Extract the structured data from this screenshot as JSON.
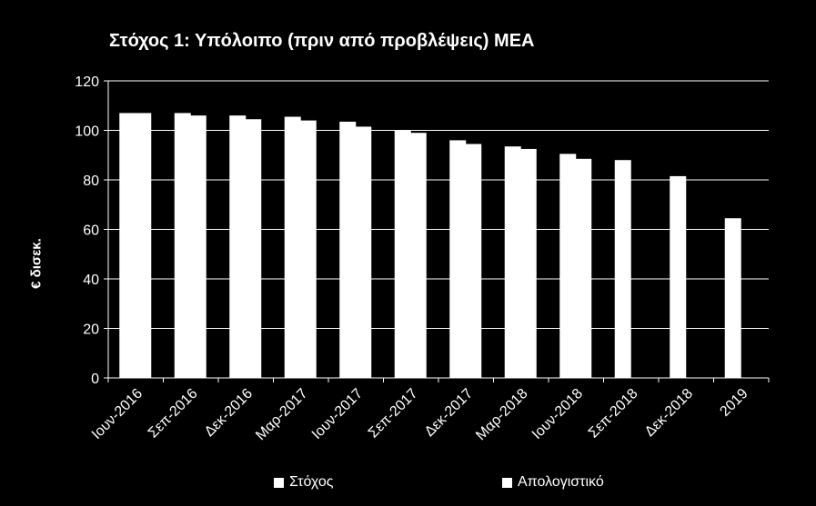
{
  "chart_data": {
    "type": "bar",
    "title": "Στόχος 1: Υπόλοιπο (πριν από προβλέψεις) ΜΕΑ",
    "xlabel": "",
    "ylabel": "€ δισεκ.",
    "ylim": [
      0,
      120
    ],
    "yticks": [
      0,
      20,
      40,
      60,
      80,
      100,
      120
    ],
    "grid": true,
    "legend_position": "bottom",
    "categories": [
      "Ιουν-2016",
      "Σεπ-2016",
      "Δεκ-2016",
      "Μαρ-2017",
      "Ιουν-2017",
      "Σεπ-2017",
      "Δεκ-2017",
      "Μαρ-2018",
      "Ιουν-2018",
      "Σεπ-2018",
      "Δεκ-2018",
      "2019"
    ],
    "series": [
      {
        "name": "Στόχος",
        "color": "#ffffff",
        "values": [
          107,
          107,
          106,
          105.5,
          103.5,
          100,
          96,
          93.5,
          90.5,
          88,
          81.5,
          64.5
        ]
      },
      {
        "name": "Απολογιστικό",
        "color": "#ffffff",
        "values": [
          107,
          106,
          104.5,
          104,
          101.5,
          99,
          94.5,
          92.5,
          88.5,
          null,
          null,
          null
        ]
      }
    ]
  }
}
